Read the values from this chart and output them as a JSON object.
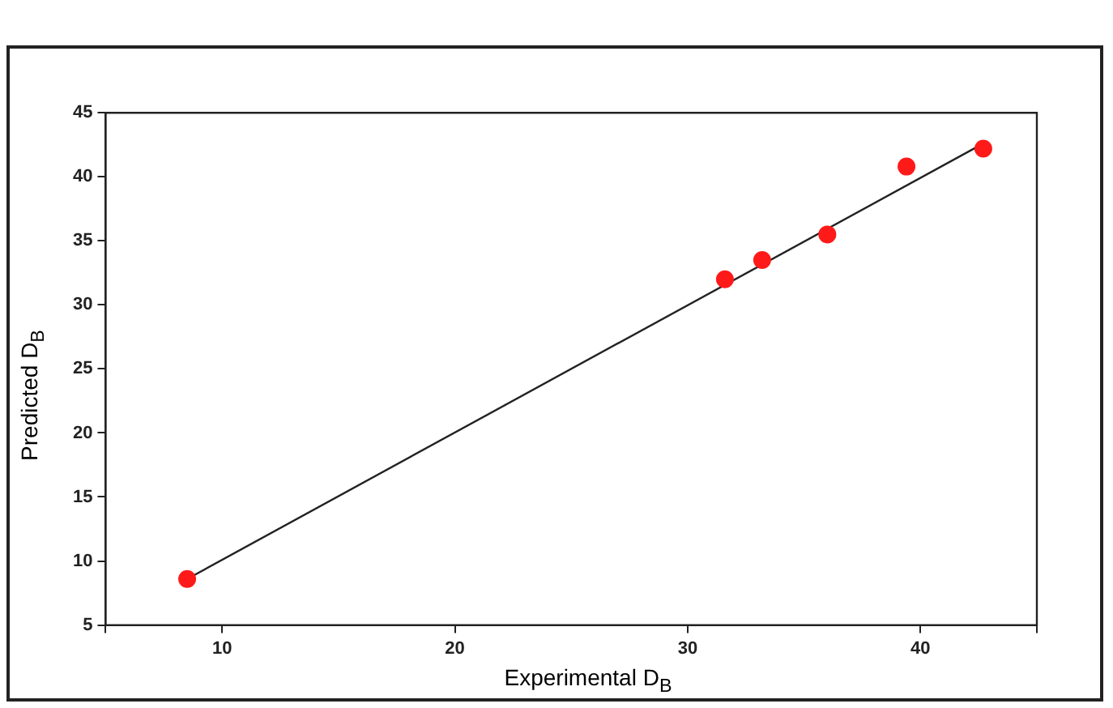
{
  "chart_data": {
    "type": "scatter",
    "xlabel": "Experimental D$_{B}$",
    "ylabel": "Predicted D$_{B}$",
    "x": [
      8.5,
      31.6,
      33.2,
      36.0,
      39.4,
      42.7
    ],
    "series": [
      {
        "color": "#ff1a1a",
        "marker": "circle",
        "values": [
          8.6,
          32.0,
          33.5,
          35.5,
          40.8,
          42.2
        ]
      },
      {
        "type": "line",
        "color": "#222222",
        "marker": "none",
        "x": [
          8.5,
          42.7
        ],
        "values": [
          8.6,
          42.6
        ]
      }
    ],
    "xlim": [
      5,
      45
    ],
    "xticks": [
      {
        "value": 5,
        "label": null
      },
      10,
      20,
      30,
      40,
      {
        "value": 45,
        "label": null
      }
    ],
    "ylim": [
      5,
      45
    ],
    "yticks": [
      5,
      10,
      15,
      20,
      25,
      30,
      35,
      40,
      45
    ],
    "grid": false,
    "legend": false,
    "line_style": "solid"
  }
}
